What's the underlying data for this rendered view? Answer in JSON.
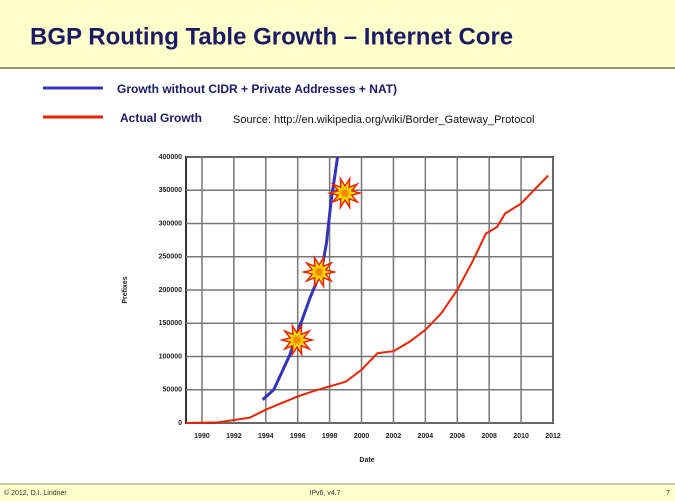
{
  "title": "BGP Routing Table Growth – Internet Core",
  "source": "Source: http://en.wikipedia.org/wiki/Border_Gateway_Protocol",
  "footer": {
    "left": "© 2012, D.I. Lindner",
    "center": "IPv6, v4.7",
    "right": "7"
  },
  "chart_data": {
    "type": "line",
    "xlabel": "Date",
    "ylabel": "Prefixes",
    "xlim": [
      1989,
      2012
    ],
    "xticks": [
      1990,
      1992,
      1994,
      1996,
      1998,
      2000,
      2002,
      2004,
      2006,
      2008,
      2010,
      2012
    ],
    "ylim": [
      0,
      400000
    ],
    "yticks": [
      0,
      50000,
      100000,
      150000,
      200000,
      250000,
      300000,
      350000,
      400000
    ],
    "grid": true,
    "series": [
      {
        "name": "Growth without CIDR + Private Addresses + NAT)",
        "color": "#3333bb",
        "x": [
          1993.8,
          1994.5,
          1995.5,
          1996.2,
          1996.8,
          1997.5,
          1997.8,
          1998.1,
          1998.5
        ],
        "values": [
          35000,
          50000,
          102000,
          150000,
          190000,
          230000,
          270000,
          335000,
          400000
        ]
      },
      {
        "name": "Actual Growth",
        "color": "#ee2200",
        "x": [
          1989,
          1991,
          1993,
          1994,
          1995,
          1996,
          1997,
          1998,
          1999,
          2000,
          2001,
          2002,
          2003,
          2004,
          2005,
          2006,
          2007,
          2007.8,
          2008.5,
          2009,
          2010,
          2011,
          2011.7
        ],
        "values": [
          0,
          1000,
          8000,
          20000,
          30000,
          40000,
          48000,
          55000,
          62000,
          80000,
          105000,
          108000,
          122000,
          140000,
          165000,
          200000,
          245000,
          285000,
          295000,
          315000,
          330000,
          355000,
          372000
        ]
      }
    ]
  }
}
